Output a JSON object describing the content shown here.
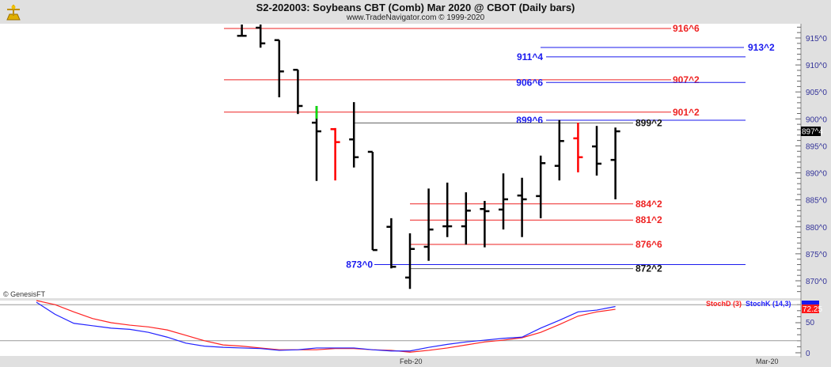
{
  "header": {
    "title": "S2-202003:  Soybeans CBT (Comb) Mar 2020 @ CBOT  (Daily bars)",
    "subtitle": "www.TradeNavigator.com © 1999-2020",
    "logo_icon": "sextant-icon"
  },
  "copyright": "© GenesisFT",
  "price_axis": {
    "ticks": [
      "915^0",
      "910^0",
      "905^0",
      "900^0",
      "895^0",
      "890^0",
      "885^0",
      "880^0",
      "875^0",
      "870^0"
    ],
    "tick_values": [
      915,
      910,
      905,
      900,
      895,
      890,
      885,
      880,
      875,
      870
    ],
    "last_price_label": "897^4",
    "last_price": 897.5
  },
  "x_axis": {
    "labels": [
      "Feb-20",
      "Mar-20"
    ]
  },
  "colors": {
    "up": "#000000",
    "down_red": "#ff0000",
    "green": "#00dd00",
    "level_red": "#ee2222",
    "level_blue": "#1a1aee",
    "level_black": "#111111"
  },
  "chart_data": [
    {
      "type": "ohlc",
      "title": "S2-202003:  Soybeans CBT (Comb) Mar 2020 @ CBOT  (Daily bars)",
      "ylim": [
        867,
        917.5
      ],
      "bars": [
        {
          "o": 915.4,
          "h": 919.1,
          "l": 915.4,
          "c": 915.4,
          "color": "#000000"
        },
        {
          "o": 916.9,
          "h": 917.9,
          "l": 913.2,
          "c": 914.0,
          "color": "#000000"
        },
        {
          "o": 914.6,
          "h": 914.6,
          "l": 904.0,
          "c": 908.8,
          "color": "#000000"
        },
        {
          "o": 909.1,
          "h": 909.1,
          "l": 900.9,
          "c": 902.4,
          "color": "#000000"
        },
        {
          "o": 899.3,
          "h": 902.4,
          "l": 888.5,
          "c": 897.7,
          "color": "#000000",
          "top_color": "#00dd00"
        },
        {
          "o": 898.1,
          "h": 898.3,
          "l": 888.6,
          "c": 895.7,
          "color": "#ff0000"
        },
        {
          "o": 896.2,
          "h": 903.1,
          "l": 891.0,
          "c": 892.9,
          "color": "#000000"
        },
        {
          "o": 893.9,
          "h": 893.9,
          "l": 875.7,
          "c": 875.7,
          "color": "#000000"
        },
        {
          "o": 880.0,
          "h": 881.6,
          "l": 872.3,
          "c": 872.6,
          "color": "#000000"
        },
        {
          "o": 870.6,
          "h": 878.8,
          "l": 868.5,
          "c": 875.9,
          "color": "#000000"
        },
        {
          "o": 876.3,
          "h": 887.1,
          "l": 873.7,
          "c": 879.5,
          "color": "#000000"
        },
        {
          "o": 880.1,
          "h": 888.2,
          "l": 878.1,
          "c": 880.1,
          "color": "#000000"
        },
        {
          "o": 880.1,
          "h": 886.4,
          "l": 876.7,
          "c": 883.0,
          "color": "#000000"
        },
        {
          "o": 883.3,
          "h": 884.8,
          "l": 876.2,
          "c": 882.9,
          "color": "#000000"
        },
        {
          "o": 883.2,
          "h": 889.9,
          "l": 879.5,
          "c": 885.1,
          "color": "#000000"
        },
        {
          "o": 885.8,
          "h": 889.1,
          "l": 878.1,
          "c": 885.1,
          "color": "#000000"
        },
        {
          "o": 885.7,
          "h": 893.2,
          "l": 881.6,
          "c": 891.8,
          "color": "#000000"
        },
        {
          "o": 891.3,
          "h": 899.8,
          "l": 888.6,
          "c": 895.9,
          "color": "#000000"
        },
        {
          "o": 896.4,
          "h": 899.3,
          "l": 890.1,
          "c": 892.9,
          "color": "#ff0000"
        },
        {
          "o": 894.9,
          "h": 898.7,
          "l": 889.5,
          "c": 891.7,
          "color": "#000000"
        },
        {
          "o": 892.4,
          "h": 898.4,
          "l": 885.1,
          "c": 897.7,
          "color": "#000000"
        }
      ],
      "levels": [
        {
          "label": "916^6",
          "price": 916.75,
          "color": "#ee2222"
        },
        {
          "label": "913^2",
          "price": 913.25,
          "color": "#1a1aee"
        },
        {
          "label": "911^4",
          "price": 911.5,
          "color": "#1a1aee"
        },
        {
          "label": "907^2",
          "price": 907.25,
          "color": "#ee2222"
        },
        {
          "label": "906^6",
          "price": 906.75,
          "color": "#1a1aee"
        },
        {
          "label": "901^2",
          "price": 901.25,
          "color": "#ee2222"
        },
        {
          "label": "899^6",
          "price": 899.75,
          "color": "#1a1aee"
        },
        {
          "label": "899^2",
          "price": 899.25,
          "color": "#111111"
        },
        {
          "label": "884^2",
          "price": 884.25,
          "color": "#ee2222"
        },
        {
          "label": "881^2",
          "price": 881.25,
          "color": "#ee2222"
        },
        {
          "label": "876^6",
          "price": 876.75,
          "color": "#ee2222"
        },
        {
          "label": "873^0",
          "price": 873.0,
          "color": "#1a1aee"
        },
        {
          "label": "872^2",
          "price": 872.25,
          "color": "#111111"
        }
      ]
    },
    {
      "type": "line",
      "ylim": [
        0,
        100
      ],
      "reference_lines": [
        20,
        80
      ],
      "y_ticks": [
        "50",
        "0"
      ],
      "series": [
        {
          "name": "StochD (3)",
          "color": "#ff2222",
          "values": [
            87,
            80,
            68,
            57,
            50,
            46,
            43,
            38,
            29,
            20,
            13,
            11,
            8,
            5,
            5,
            5,
            7,
            7,
            5,
            4,
            1,
            4,
            8,
            13,
            18,
            21,
            25,
            34,
            47,
            61,
            68,
            72.25
          ]
        },
        {
          "name": "StochK (14,3)",
          "color": "#2222ff",
          "values": [
            84,
            64,
            49,
            45,
            41,
            39,
            34,
            26,
            16,
            11,
            9,
            8,
            7,
            4,
            5,
            8,
            8,
            8,
            5,
            3,
            3,
            9,
            14,
            18,
            21,
            24,
            26,
            41,
            54,
            68,
            71,
            77
          ]
        }
      ],
      "last_value_label": "72.25"
    }
  ]
}
